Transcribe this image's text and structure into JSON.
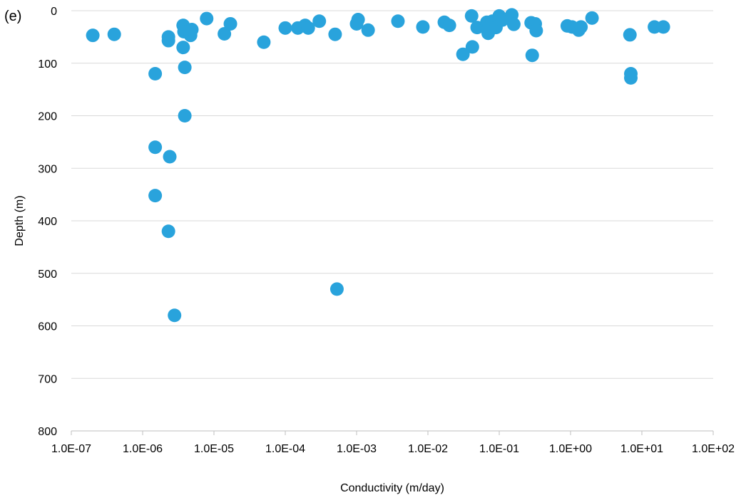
{
  "panel_label": "(e)",
  "chart_data": {
    "type": "scatter",
    "title": "",
    "xlabel": "Conductivity (m/day)",
    "ylabel": "Depth (m)",
    "x_scale": "log",
    "xlim": [
      1e-07,
      100
    ],
    "ylim": [
      0,
      800
    ],
    "y_inverted": true,
    "grid": "horizontal",
    "legend": "none",
    "marker_color": "#29A3DC",
    "x_ticks": [
      "1.0E-07",
      "1.0E-06",
      "1.0E-05",
      "1.0E-04",
      "1.0E-03",
      "1.0E-02",
      "1.0E-01",
      "1.0E+00",
      "1.0E+01",
      "1.0E+02"
    ],
    "x_tick_values": [
      1e-07,
      1e-06,
      1e-05,
      0.0001,
      0.001,
      0.01,
      0.1,
      1,
      10,
      100
    ],
    "y_ticks": [
      "0",
      "100",
      "200",
      "300",
      "400",
      "500",
      "600",
      "700",
      "800"
    ],
    "y_tick_values": [
      0,
      100,
      200,
      300,
      400,
      500,
      600,
      700,
      800
    ],
    "series": [
      {
        "points": [
          [
            2e-07,
            47
          ],
          [
            4e-07,
            45
          ],
          [
            1.5e-06,
            120
          ],
          [
            1.5e-06,
            260
          ],
          [
            1.5e-06,
            352
          ],
          [
            2.3e-06,
            50
          ],
          [
            2.3e-06,
            57
          ],
          [
            2.4e-06,
            278
          ],
          [
            2.3e-06,
            420
          ],
          [
            2.8e-06,
            580
          ],
          [
            3.7e-06,
            28
          ],
          [
            3.7e-06,
            70
          ],
          [
            3.8e-06,
            40
          ],
          [
            3.9e-06,
            108
          ],
          [
            3.9e-06,
            200
          ],
          [
            4.7e-06,
            47
          ],
          [
            4.9e-06,
            36
          ],
          [
            7.9e-06,
            15
          ],
          [
            1.4e-05,
            44
          ],
          [
            1.7e-05,
            25
          ],
          [
            5e-05,
            60
          ],
          [
            0.0001,
            33
          ],
          [
            0.00015,
            33
          ],
          [
            0.00019,
            28
          ],
          [
            0.00021,
            33
          ],
          [
            0.0003,
            20
          ],
          [
            0.0005,
            45
          ],
          [
            0.00053,
            530
          ],
          [
            0.00105,
            17
          ],
          [
            0.001,
            25
          ],
          [
            0.00145,
            37
          ],
          [
            0.0038,
            20
          ],
          [
            0.0085,
            31
          ],
          [
            0.017,
            22
          ],
          [
            0.02,
            28
          ],
          [
            0.031,
            83
          ],
          [
            0.041,
            10
          ],
          [
            0.042,
            69
          ],
          [
            0.049,
            32
          ],
          [
            0.067,
            22
          ],
          [
            0.07,
            43
          ],
          [
            0.072,
            30
          ],
          [
            0.08,
            20
          ],
          [
            0.09,
            32
          ],
          [
            0.1,
            10
          ],
          [
            0.11,
            18
          ],
          [
            0.15,
            8
          ],
          [
            0.16,
            26
          ],
          [
            0.28,
            23
          ],
          [
            0.29,
            85
          ],
          [
            0.32,
            25
          ],
          [
            0.33,
            38
          ],
          [
            0.9,
            29
          ],
          [
            1.05,
            31
          ],
          [
            1.3,
            37
          ],
          [
            1.4,
            31
          ],
          [
            2.0,
            14
          ],
          [
            6.8,
            46
          ],
          [
            7.0,
            120
          ],
          [
            7.0,
            128
          ],
          [
            15.0,
            31
          ],
          [
            20.0,
            31
          ]
        ]
      }
    ]
  }
}
